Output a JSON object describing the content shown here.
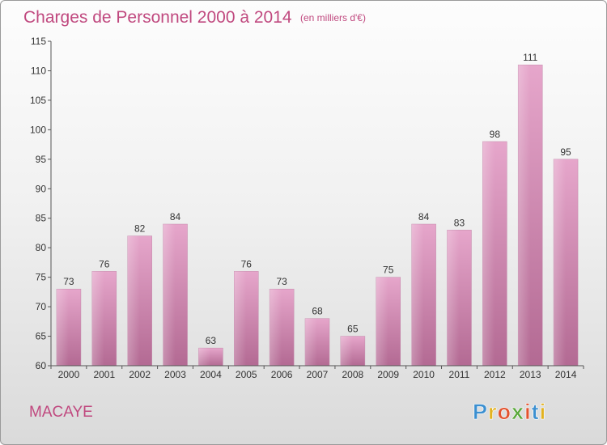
{
  "chart_data": {
    "type": "bar",
    "title": "Charges de Personnel 2000 à 2014",
    "subtitle": "(en milliers d'€)",
    "categories": [
      "2000",
      "2001",
      "2002",
      "2003",
      "2004",
      "2005",
      "2006",
      "2007",
      "2008",
      "2009",
      "2010",
      "2011",
      "2012",
      "2013",
      "2014"
    ],
    "values": [
      73,
      76,
      82,
      84,
      63,
      76,
      73,
      68,
      65,
      75,
      84,
      83,
      98,
      111,
      95
    ],
    "ylim": [
      60,
      115
    ],
    "yticks": [
      60,
      65,
      70,
      75,
      80,
      85,
      90,
      95,
      100,
      105,
      110,
      115
    ],
    "grid": false,
    "bar_color": "#d68fb7",
    "data_labels": true
  },
  "footer": {
    "commune": "MACAYE",
    "brand": "Proxiti",
    "brand_colors": [
      "#3b8fd0",
      "#e2b21f",
      "#e2532f",
      "#5aa83c",
      "#e2532f",
      "#3b8fd0",
      "#e2b21f"
    ]
  }
}
